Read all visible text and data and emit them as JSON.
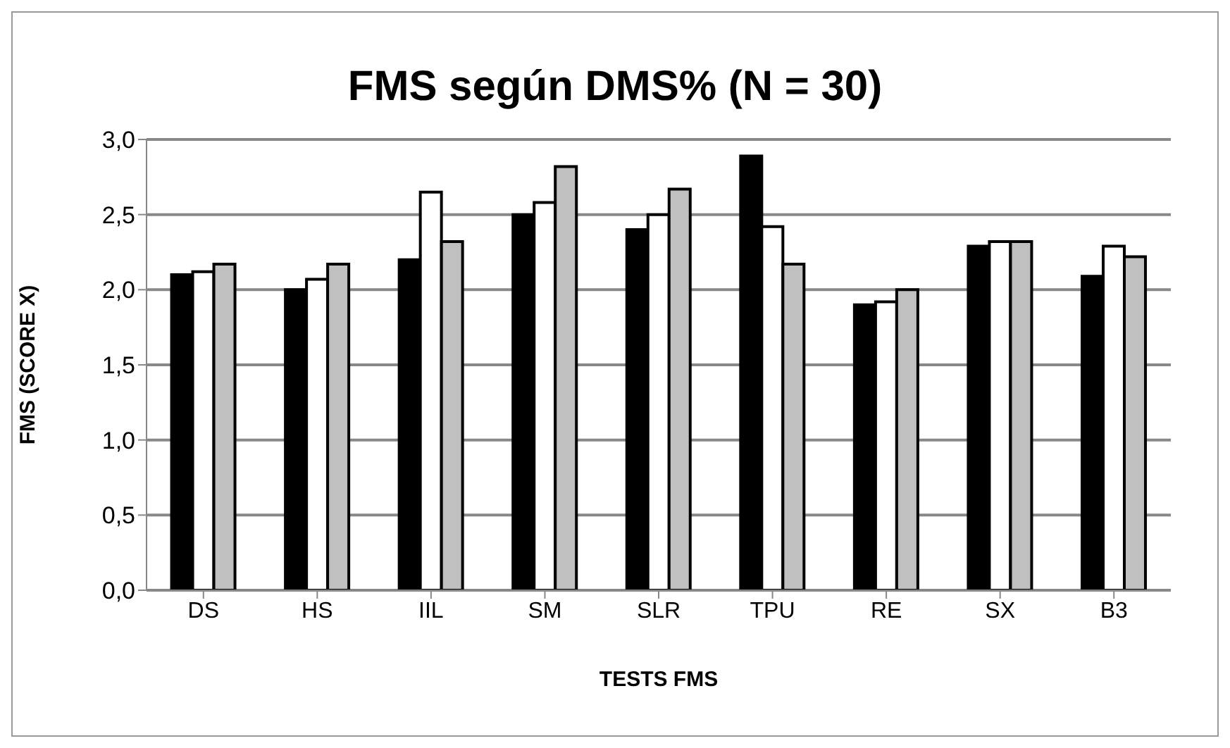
{
  "chart_data": {
    "type": "bar",
    "title": "FMS según DMS% (N = 30)",
    "xlabel": "TESTS FMS",
    "ylabel": "FMS (SCORE X)",
    "categories": [
      "DS",
      "HS",
      "IIL",
      "SM",
      "SLR",
      "TPU",
      "RE",
      "SX",
      "B3"
    ],
    "series": [
      {
        "color": "#000000",
        "values": [
          2.1,
          2.0,
          2.2,
          2.5,
          2.4,
          2.89,
          1.9,
          2.29,
          2.09
        ]
      },
      {
        "color": "#ffffff",
        "values": [
          2.12,
          2.07,
          2.65,
          2.58,
          2.5,
          2.42,
          1.92,
          2.32,
          2.29
        ]
      },
      {
        "color": "#c0c0c0",
        "values": [
          2.17,
          2.17,
          2.32,
          2.82,
          2.67,
          2.17,
          2.0,
          2.32,
          2.22
        ]
      }
    ],
    "ylim": [
      0,
      3
    ],
    "yticks": [
      {
        "value": 0,
        "label": "0,0"
      },
      {
        "value": 0.5,
        "label": "0,5"
      },
      {
        "value": 1,
        "label": "1,0"
      },
      {
        "value": 1.5,
        "label": "1,5"
      },
      {
        "value": 2,
        "label": "2,0"
      },
      {
        "value": 2.5,
        "label": "2,5"
      },
      {
        "value": 3,
        "label": "3,0"
      }
    ],
    "grid": "y",
    "legend": false
  }
}
